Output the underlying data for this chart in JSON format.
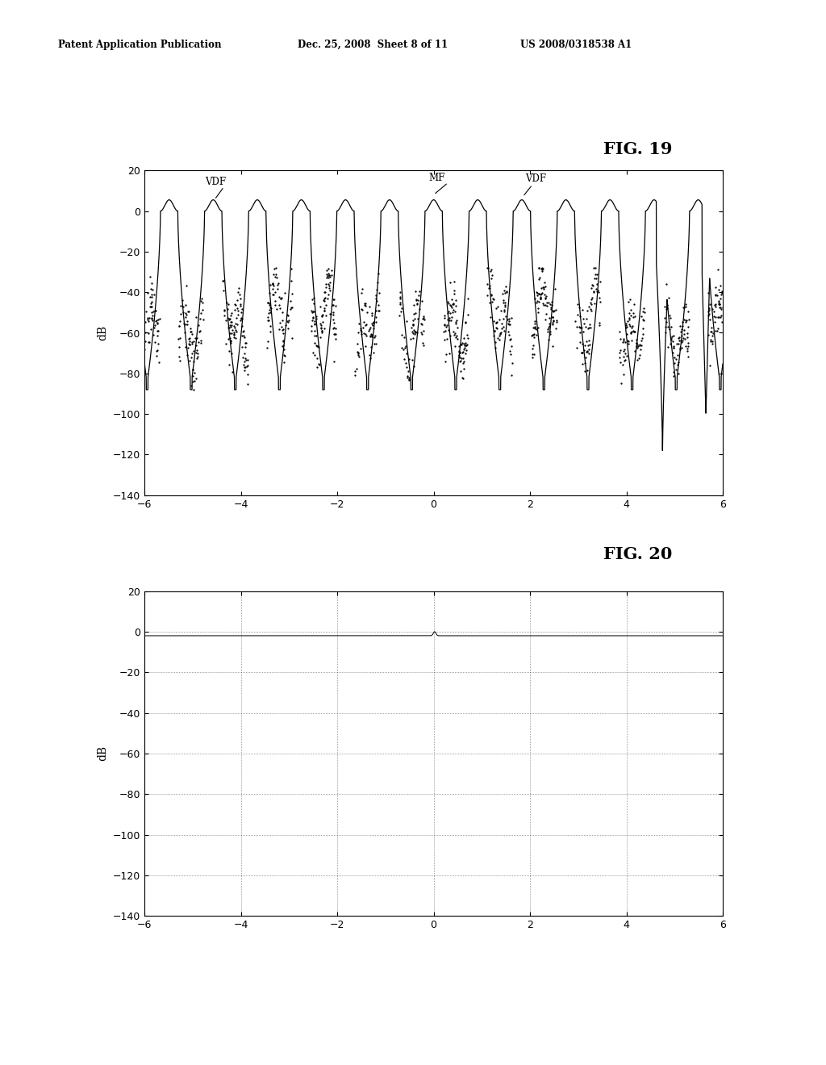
{
  "fig19_title": "FIG. 19",
  "fig20_title": "FIG. 20",
  "header_left": "Patent Application Publication",
  "header_middle": "Dec. 25, 2008  Sheet 8 of 11",
  "header_right": "US 2008/0318538 A1",
  "ylabel": "dB",
  "xlim": [
    -6,
    6
  ],
  "fig19_ylim": [
    -140,
    20
  ],
  "fig20_ylim": [
    -140,
    20
  ],
  "fig19_yticks": [
    20,
    0,
    -20,
    -40,
    -60,
    -80,
    -100,
    -120,
    -140
  ],
  "fig20_yticks": [
    20,
    0,
    -20,
    -40,
    -60,
    -80,
    -100,
    -120,
    -140
  ],
  "xticks": [
    -6,
    -4,
    -2,
    0,
    2,
    4,
    6
  ],
  "background_color": "#ffffff"
}
